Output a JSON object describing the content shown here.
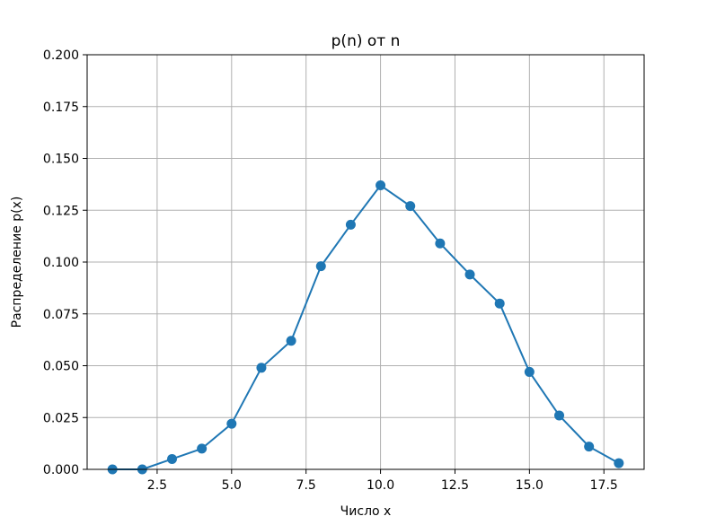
{
  "chart_data": {
    "type": "line",
    "title": "p(n) от n",
    "xlabel": "Число x",
    "ylabel": "Распределение p(x)",
    "xlim": [
      0.15,
      18.85
    ],
    "ylim": [
      0,
      0.2
    ],
    "x_ticks": [
      "2.5",
      "5.0",
      "7.5",
      "10.0",
      "12.5",
      "15.0",
      "17.5"
    ],
    "y_ticks": [
      "0.000",
      "0.025",
      "0.050",
      "0.075",
      "0.100",
      "0.125",
      "0.150",
      "0.175",
      "0.200"
    ],
    "grid": true,
    "markers": true,
    "series": [
      {
        "color": "#1f77b4",
        "x": [
          1,
          2,
          3,
          4,
          5,
          6,
          7,
          8,
          9,
          10,
          11,
          12,
          13,
          14,
          15,
          16,
          17,
          18
        ],
        "y": [
          0.0,
          0.0,
          0.005,
          0.01,
          0.022,
          0.049,
          0.062,
          0.098,
          0.118,
          0.137,
          0.127,
          0.109,
          0.094,
          0.08,
          0.047,
          0.026,
          0.011,
          0.003
        ]
      }
    ]
  }
}
